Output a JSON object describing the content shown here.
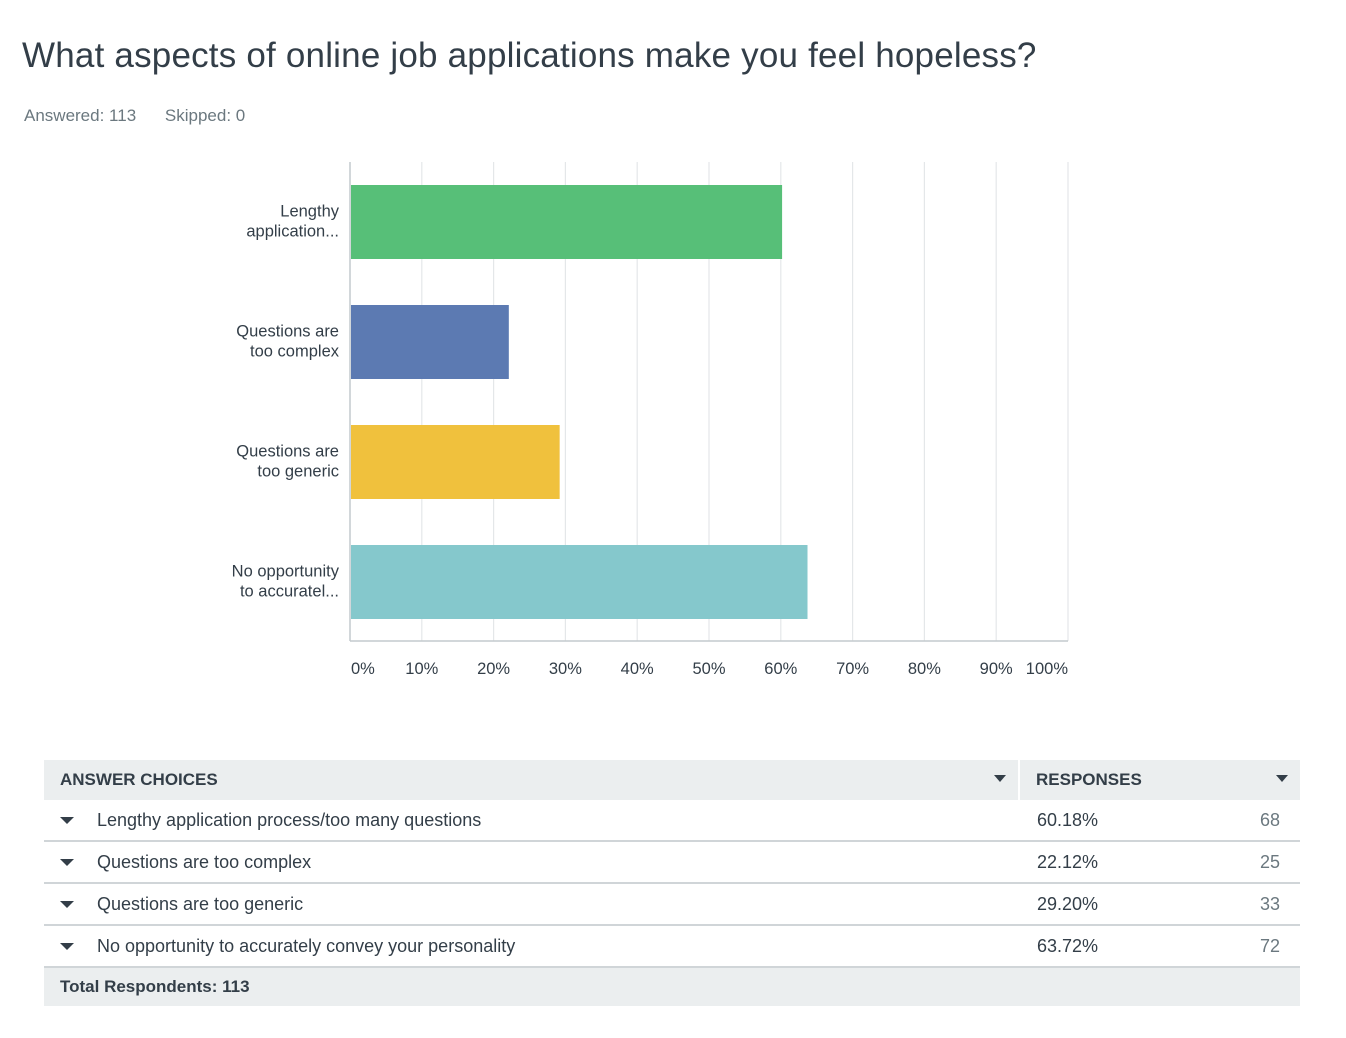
{
  "question": {
    "title": "What aspects of online job applications make you feel hopeless?",
    "answered": "Answered: 113",
    "skipped": "Skipped: 0"
  },
  "chart_data": {
    "type": "bar",
    "orientation": "horizontal",
    "categories": [
      [
        "Lengthy",
        "application..."
      ],
      [
        "Questions are",
        "too complex"
      ],
      [
        "Questions are",
        "too generic"
      ],
      [
        "No opportunity",
        "to accuratel..."
      ]
    ],
    "values": [
      60.18,
      22.12,
      29.2,
      63.72
    ],
    "colors": [
      "#57bf78",
      "#5c7ab2",
      "#f0c13d",
      "#85c8cc"
    ],
    "xlim": [
      0,
      100
    ],
    "ticks": [
      "0%",
      "10%",
      "20%",
      "30%",
      "40%",
      "50%",
      "60%",
      "70%",
      "80%",
      "90%",
      "100%"
    ],
    "grid": true
  },
  "table": {
    "header_choices": "ANSWER CHOICES",
    "header_responses": "RESPONSES",
    "rows": [
      {
        "label": "Lengthy application process/too many questions",
        "percent": "60.18%",
        "count": "68"
      },
      {
        "label": "Questions are too complex",
        "percent": "22.12%",
        "count": "25"
      },
      {
        "label": "Questions are too generic",
        "percent": "29.20%",
        "count": "33"
      },
      {
        "label": "No opportunity to accurately convey your personality",
        "percent": "63.72%",
        "count": "72"
      }
    ],
    "footer": "Total Respondents: 113"
  }
}
